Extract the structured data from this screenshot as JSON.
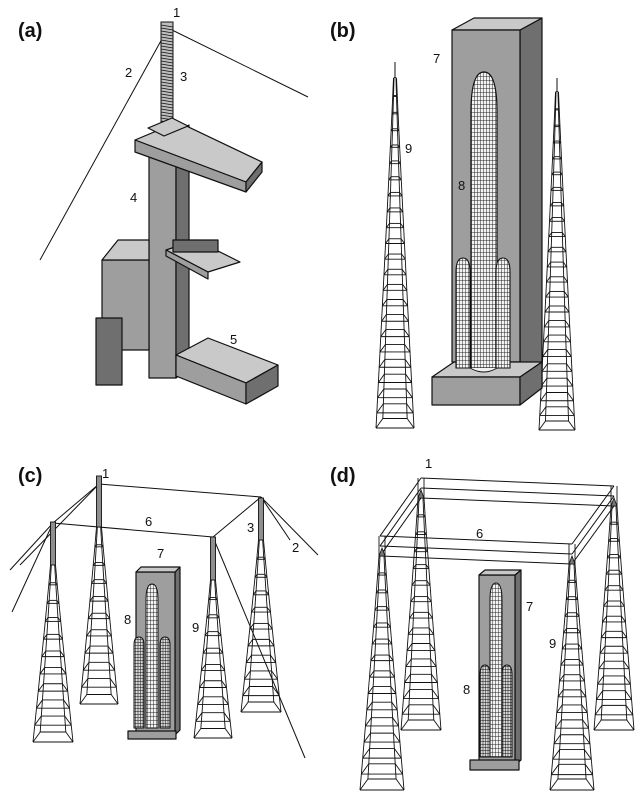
{
  "panels": [
    {
      "id": "a",
      "label": "(a)",
      "numbers": [
        "1",
        "2",
        "3",
        "4",
        "5"
      ]
    },
    {
      "id": "b",
      "label": "(b)",
      "numbers": [
        "7",
        "8",
        "9"
      ]
    },
    {
      "id": "c",
      "label": "(c)",
      "numbers": [
        "1",
        "6",
        "3",
        "2",
        "7",
        "8",
        "9"
      ]
    },
    {
      "id": "d",
      "label": "(d)",
      "numbers": [
        "1",
        "6",
        "7",
        "9",
        "8"
      ]
    }
  ],
  "colors": {
    "structure": "#9e9e9e",
    "structure_top": "#c9c9c9",
    "structure_side": "#6f6f6f",
    "line": "#111111"
  }
}
